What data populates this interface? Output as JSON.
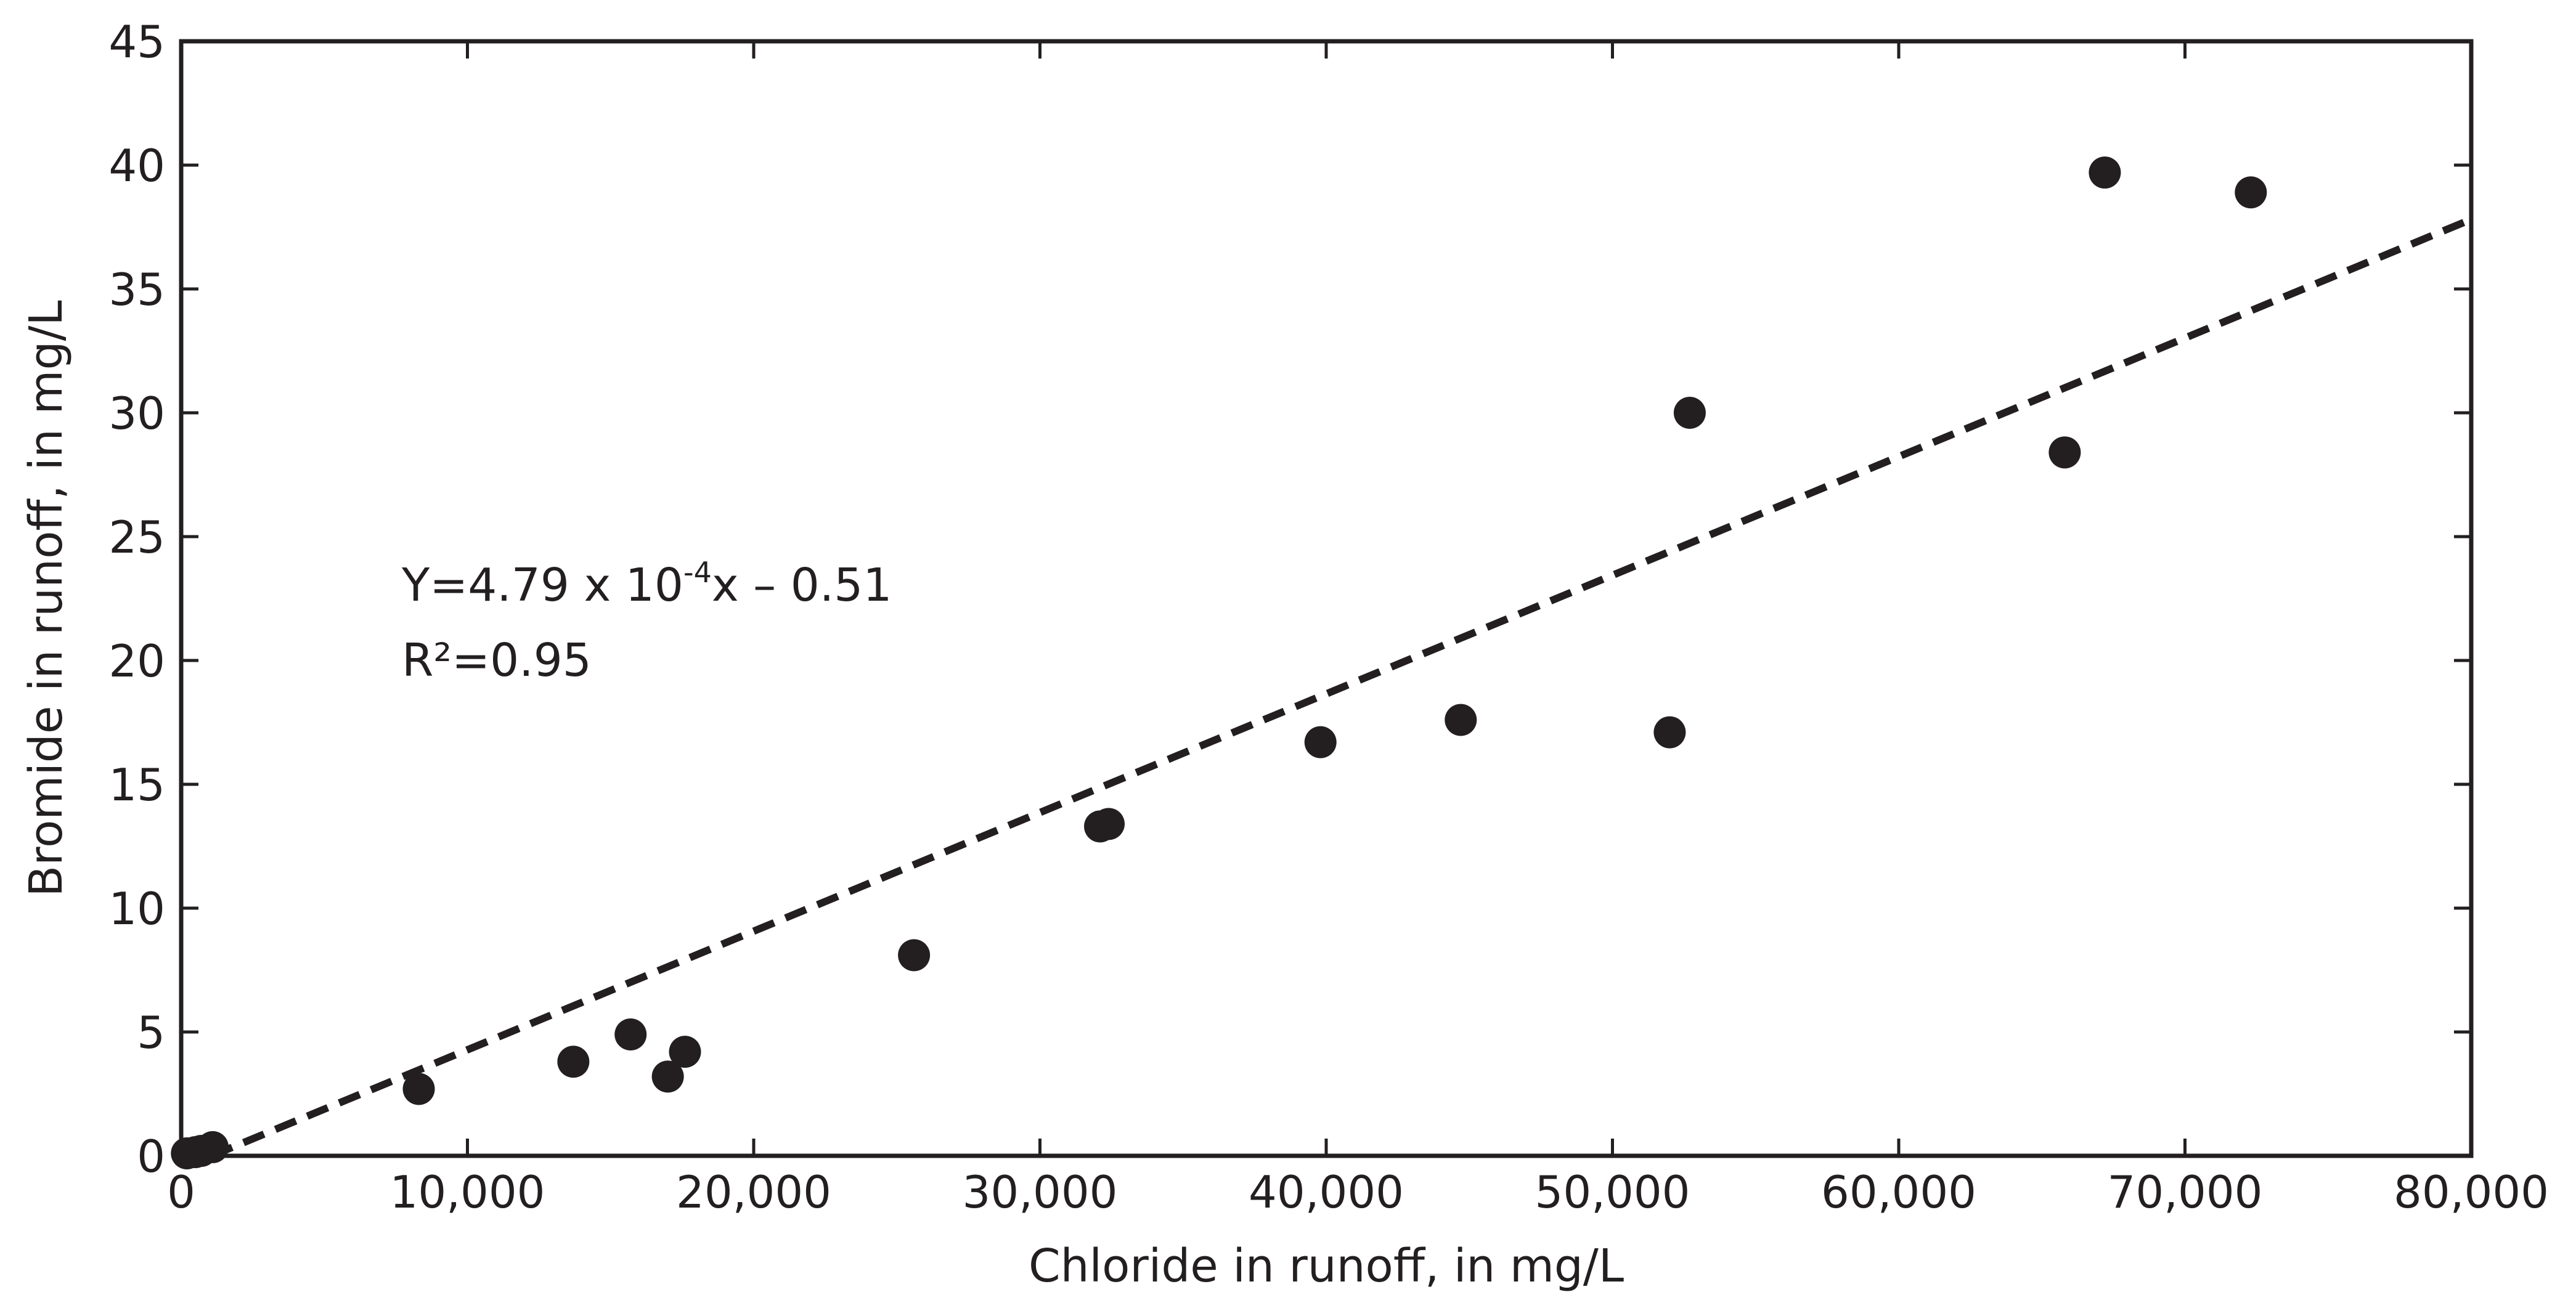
{
  "chart_data": {
    "type": "scatter",
    "title": "",
    "xlabel": "Chloride in runoff, in mg/L",
    "ylabel": "Bromide in runoff, in mg/L",
    "xlim": [
      0,
      80000
    ],
    "ylim": [
      0,
      45
    ],
    "grid": false,
    "colors": {
      "points": "#231f20",
      "trendline": "#231f20",
      "axes": "#231f20"
    },
    "x_ticks": [
      {
        "value": 0,
        "label": "0"
      },
      {
        "value": 10000,
        "label": "10,000"
      },
      {
        "value": 20000,
        "label": "20,000"
      },
      {
        "value": 30000,
        "label": "30,000"
      },
      {
        "value": 40000,
        "label": "40,000"
      },
      {
        "value": 50000,
        "label": "50,000"
      },
      {
        "value": 60000,
        "label": "60,000"
      },
      {
        "value": 70000,
        "label": "70,000"
      },
      {
        "value": 80000,
        "label": "80,000"
      }
    ],
    "y_ticks": [
      {
        "value": 0,
        "label": "0"
      },
      {
        "value": 5,
        "label": "5"
      },
      {
        "value": 10,
        "label": "10"
      },
      {
        "value": 15,
        "label": "15"
      },
      {
        "value": 20,
        "label": "20"
      },
      {
        "value": 25,
        "label": "25"
      },
      {
        "value": 30,
        "label": "30"
      },
      {
        "value": 35,
        "label": "35"
      },
      {
        "value": 40,
        "label": "40"
      },
      {
        "value": 45,
        "label": "45"
      }
    ],
    "points": [
      {
        "x": 200,
        "y": 0.1
      },
      {
        "x": 500,
        "y": 0.15
      },
      {
        "x": 700,
        "y": 0.2
      },
      {
        "x": 1100,
        "y": 0.35
      },
      {
        "x": 8300,
        "y": 2.7
      },
      {
        "x": 13700,
        "y": 3.8
      },
      {
        "x": 15700,
        "y": 4.9
      },
      {
        "x": 17000,
        "y": 3.2
      },
      {
        "x": 17600,
        "y": 4.2
      },
      {
        "x": 25600,
        "y": 8.1
      },
      {
        "x": 32100,
        "y": 13.3
      },
      {
        "x": 32400,
        "y": 13.4
      },
      {
        "x": 39800,
        "y": 16.7
      },
      {
        "x": 44700,
        "y": 17.6
      },
      {
        "x": 52000,
        "y": 17.1
      },
      {
        "x": 52700,
        "y": 30.0
      },
      {
        "x": 65800,
        "y": 28.4
      },
      {
        "x": 67200,
        "y": 39.7
      },
      {
        "x": 72300,
        "y": 38.9
      }
    ],
    "trendline": {
      "slope": 0.000479,
      "intercept": -0.51,
      "style": "dashed"
    },
    "annotation": {
      "equation_prefix": "Y=4.79 x 10",
      "equation_exponent": "-4",
      "equation_suffix": "x – 0.51",
      "r_squared": "R²=0.95"
    }
  }
}
